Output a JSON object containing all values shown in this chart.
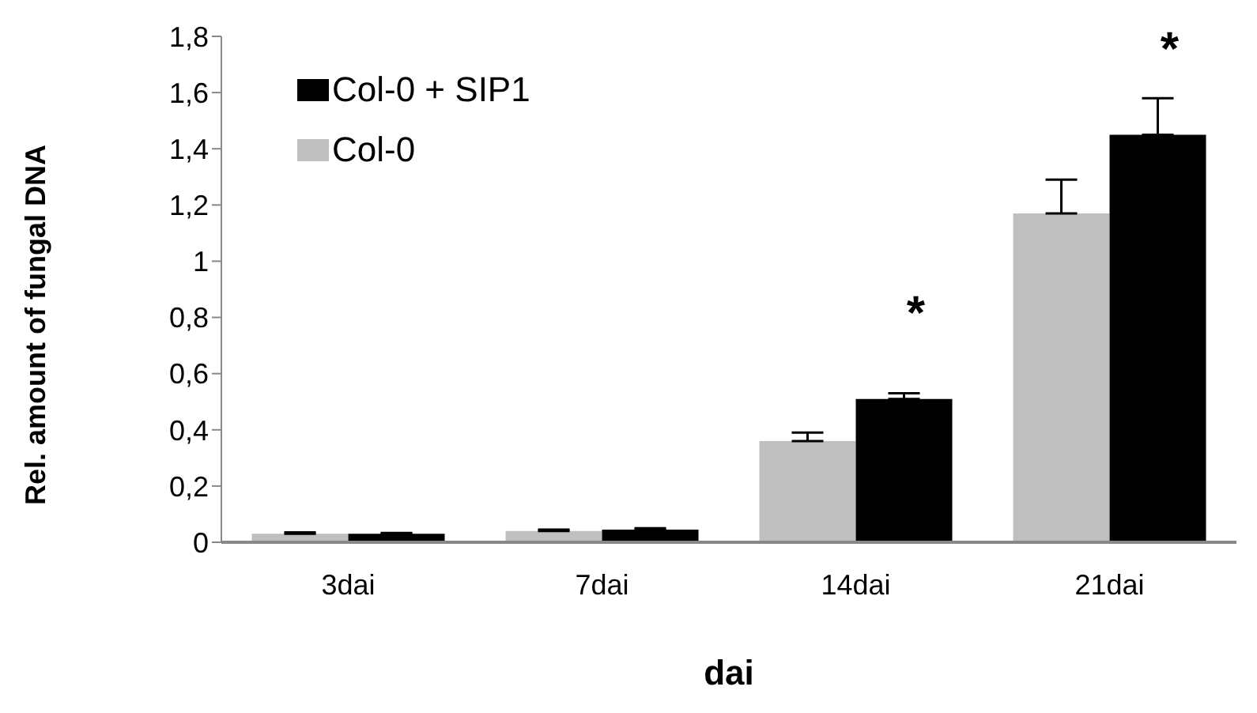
{
  "chart_data": {
    "type": "bar",
    "xlabel": "dai",
    "ylabel": "Rel. amount of fungal DNA",
    "categories": [
      "3dai",
      "7dai",
      "14dai",
      "21dai"
    ],
    "series": [
      {
        "name": "Col-0",
        "color": "#bfbfbf",
        "values": [
          0.03,
          0.04,
          0.36,
          1.17
        ],
        "errors": [
          0.005,
          0.005,
          0.03,
          0.12
        ]
      },
      {
        "name": "Col-0 + SIP1",
        "color": "#000000",
        "values": [
          0.03,
          0.045,
          0.51,
          1.45
        ],
        "errors": [
          0.003,
          0.005,
          0.02,
          0.13
        ]
      }
    ],
    "ylim": [
      0,
      1.8
    ],
    "yticks": [
      0,
      {
        "value": 0.2,
        "label": "0,2"
      },
      {
        "value": 0.4,
        "label": "0,4"
      },
      {
        "value": 0.6,
        "label": "0,6"
      },
      {
        "value": 0.8,
        "label": "0,8"
      },
      1,
      {
        "value": 1.2,
        "label": "1,2"
      },
      {
        "value": 1.4,
        "label": "1,4"
      },
      {
        "value": 1.6,
        "label": "1,6"
      },
      {
        "value": 1.8,
        "label": "1,8"
      }
    ],
    "annotations": [
      {
        "text": "*",
        "x": "14dai",
        "y": 0.51
      },
      {
        "text": "*",
        "x": "21dai",
        "y": 1.45
      }
    ],
    "grid": false,
    "legend": "top left"
  }
}
